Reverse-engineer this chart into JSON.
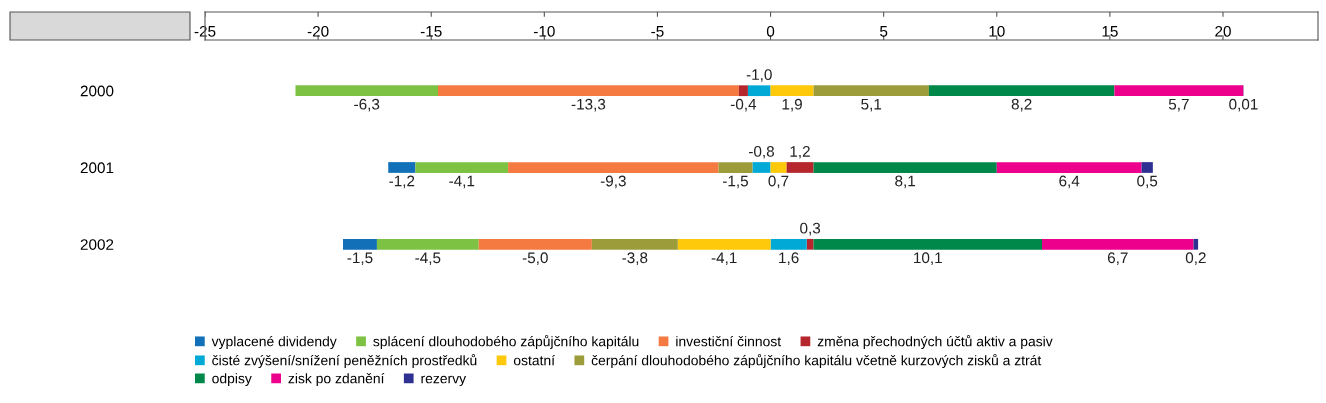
{
  "chart_data": {
    "type": "bar",
    "orientation": "horizontal",
    "categories": [
      "2000",
      "2001",
      "2002"
    ],
    "series": [
      {
        "name": "vyplacené dividendy",
        "color": "#1170b8",
        "values": [
          null,
          -1.2,
          -1.5
        ],
        "base": [
          null,
          -15.7,
          -17.4
        ],
        "value_labels": [
          null,
          "-1,2",
          "-1,5"
        ]
      },
      {
        "name": "splácení dlouhodobého zápůjčního kapitálu",
        "color": "#7dc242",
        "values": [
          -6.3,
          -4.1,
          -4.5
        ],
        "base": [
          -14.7,
          -11.6,
          -12.9
        ],
        "value_labels": [
          "-6,3",
          "-4,1",
          "-4,5"
        ]
      },
      {
        "name": "investiční činnost",
        "color": "#f47a42",
        "values": [
          -13.3,
          -9.3,
          -5.0
        ],
        "base": [
          -1.4,
          -2.3,
          -7.9
        ],
        "value_labels": [
          "-13,3",
          "-9,3",
          "-5,0"
        ]
      },
      {
        "name": "změna přechodných účtů aktiv a pasiv",
        "color": "#b5272d",
        "values": [
          -0.4,
          1.2,
          0.3
        ],
        "base": [
          -1.0,
          0.7,
          1.6
        ],
        "value_labels": [
          "-0,4",
          "1,2",
          "0,3"
        ]
      },
      {
        "name": "čisté zvýšení/snížení peněžních prostředků",
        "color": "#00a9d6",
        "values": [
          -1.0,
          -0.8,
          1.6
        ],
        "base": [
          0,
          0,
          0
        ],
        "value_labels": [
          "-1,0",
          "-0,8",
          "1,6"
        ]
      },
      {
        "name": "ostatní",
        "color": "#ffc90b",
        "values": [
          1.9,
          0.7,
          -4.1
        ],
        "base": [
          0,
          0,
          0
        ],
        "value_labels": [
          "1,9",
          "0,7",
          "-4,1"
        ]
      },
      {
        "name": "čerpání dlouhodobého zápůjčního kapitálu včetně kurzových zisků a ztrát",
        "color": "#9d9c3a",
        "values": [
          5.1,
          -1.5,
          -3.8
        ],
        "base": [
          1.9,
          -0.8,
          -4.1
        ],
        "value_labels": [
          "5,1",
          "-1,5",
          "-3,8"
        ]
      },
      {
        "name": "odpisy",
        "color": "#00884a",
        "values": [
          8.2,
          8.1,
          10.1
        ],
        "base": [
          7.0,
          1.9,
          1.9
        ],
        "value_labels": [
          "8,2",
          "8,1",
          "10,1"
        ]
      },
      {
        "name": "zisk po zdanění",
        "color": "#ec008c",
        "values": [
          5.7,
          6.4,
          6.7
        ],
        "base": [
          15.2,
          10.0,
          12.0
        ],
        "value_labels": [
          "5,7",
          "6,4",
          "6,7"
        ]
      },
      {
        "name": "rezervy",
        "color": "#2e3192",
        "values": [
          0.01,
          0.5,
          0.2
        ],
        "base": [
          20.9,
          16.4,
          18.7
        ],
        "value_labels": [
          "0,01",
          "0,5",
          "0,2"
        ]
      }
    ],
    "xlim": [
      -25,
      24.2
    ],
    "xticks": [
      -25,
      -20,
      -15,
      -10,
      -5,
      0,
      5,
      10,
      15,
      20
    ],
    "legend": "bottom left",
    "grid": false
  }
}
